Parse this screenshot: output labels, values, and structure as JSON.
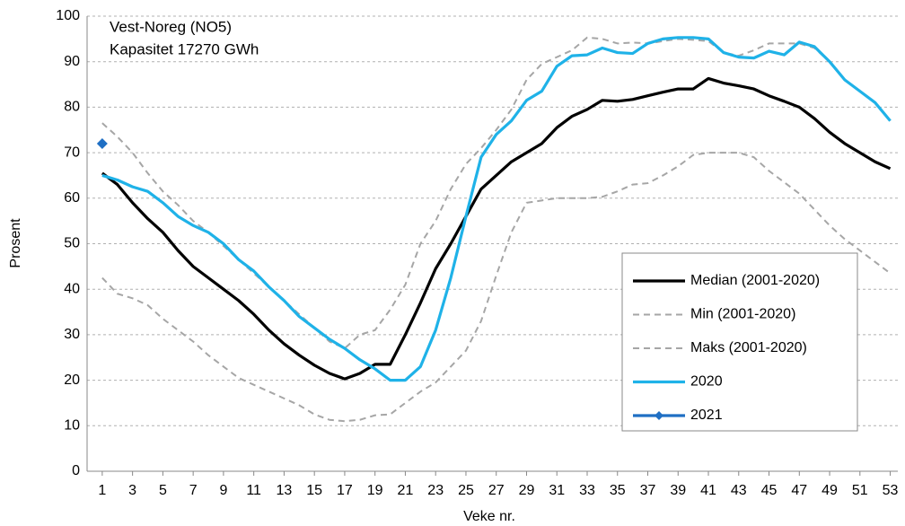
{
  "chart_data": {
    "type": "line",
    "annotations": [
      "Vest-Noreg (NO5)",
      "Kapasitet 17270 GWh"
    ],
    "x_label": "Veke nr.",
    "y_label": "Prosent",
    "x": [
      1,
      2,
      3,
      4,
      5,
      6,
      7,
      8,
      9,
      10,
      11,
      12,
      13,
      14,
      15,
      16,
      17,
      18,
      19,
      20,
      21,
      22,
      23,
      24,
      25,
      26,
      27,
      28,
      29,
      30,
      31,
      32,
      33,
      34,
      35,
      36,
      37,
      38,
      39,
      40,
      41,
      42,
      43,
      44,
      45,
      46,
      47,
      48,
      49,
      50,
      51,
      52,
      53
    ],
    "xlim": [
      0,
      53.5
    ],
    "xticks": [
      1,
      3,
      5,
      7,
      9,
      11,
      13,
      15,
      17,
      19,
      21,
      23,
      25,
      27,
      29,
      31,
      33,
      35,
      37,
      39,
      41,
      43,
      45,
      47,
      49,
      51,
      53
    ],
    "ylim": [
      0,
      100
    ],
    "yticks": [
      0,
      10,
      20,
      30,
      40,
      50,
      60,
      70,
      80,
      90,
      100
    ],
    "grid": true,
    "legend": "lower right",
    "series": [
      {
        "name": "Median (2001-2020)",
        "color": "#000000",
        "style": "solid",
        "values": [
          65.5,
          63,
          59,
          55.5,
          52.5,
          48.5,
          45,
          42.5,
          40,
          37.5,
          34.5,
          31,
          28,
          25.5,
          23.3,
          21.5,
          20.3,
          21.5,
          23.5,
          23.5,
          30,
          37,
          44.5,
          50,
          56,
          62,
          65,
          68,
          70,
          72,
          75.5,
          78,
          79.5,
          81.5,
          81.3,
          81.7,
          82.5,
          83.3,
          84,
          84,
          86.3,
          85.3,
          84.7,
          84,
          82.5,
          81.3,
          80,
          77.5,
          74.5,
          72,
          70,
          68,
          66.5
        ]
      },
      {
        "name": "Min (2001-2020)",
        "color": "#a6a6a6",
        "style": "dashed",
        "values": [
          42.5,
          39,
          38,
          36.5,
          33.5,
          31,
          28.5,
          25.5,
          23,
          20.5,
          19,
          17.5,
          16,
          14.5,
          12.5,
          11.3,
          11,
          11.3,
          12.3,
          12.5,
          15,
          17.5,
          19.5,
          23,
          26.5,
          33,
          43,
          52.5,
          59,
          59.5,
          60,
          60,
          60,
          60.3,
          61.5,
          63,
          63.3,
          65,
          67,
          69.5,
          70,
          70,
          70,
          69,
          66,
          63.5,
          61,
          57.5,
          54,
          51,
          48.5,
          46,
          43.5
        ]
      },
      {
        "name": "Maks (2001-2020)",
        "color": "#a6a6a6",
        "style": "dashed",
        "values": [
          76.5,
          73.5,
          70,
          65.5,
          61.5,
          58.5,
          55,
          52.5,
          49.5,
          46.5,
          43.5,
          40.5,
          37.5,
          34.5,
          31.5,
          28.5,
          27,
          30,
          31,
          35.5,
          41,
          50,
          55,
          62,
          67.5,
          71,
          75,
          79.5,
          86,
          89.5,
          91,
          92.5,
          95.3,
          95,
          94,
          94.2,
          94,
          94.5,
          95,
          94.8,
          94.5,
          92,
          91.3,
          92.5,
          94,
          94,
          94,
          93,
          90,
          86,
          83.5,
          81,
          77
        ]
      },
      {
        "name": "2020",
        "color": "#1fb2e8",
        "style": "solid",
        "values": [
          65,
          64,
          62.5,
          61.5,
          59,
          56,
          54,
          52.5,
          50,
          46.5,
          44,
          40.5,
          37.5,
          34,
          31.5,
          29,
          27,
          24.5,
          22.5,
          20,
          20,
          23,
          31,
          42.5,
          56,
          69,
          74,
          77,
          81.5,
          83.5,
          89,
          91.3,
          91.5,
          93,
          92,
          91.8,
          94,
          95,
          95.3,
          95.3,
          95,
          92,
          91,
          90.8,
          92.3,
          91.5,
          94.3,
          93.3,
          90,
          86,
          83.5,
          81,
          77
        ]
      },
      {
        "name": "2021",
        "color": "#1f6fc4",
        "style": "solid",
        "marker": "diamond",
        "values": [
          72,
          null,
          null,
          null,
          null,
          null,
          null,
          null,
          null,
          null,
          null,
          null,
          null,
          null,
          null,
          null,
          null,
          null,
          null,
          null,
          null,
          null,
          null,
          null,
          null,
          null,
          null,
          null,
          null,
          null,
          null,
          null,
          null,
          null,
          null,
          null,
          null,
          null,
          null,
          null,
          null,
          null,
          null,
          null,
          null,
          null,
          null,
          null,
          null,
          null,
          null,
          null,
          null
        ]
      }
    ]
  }
}
